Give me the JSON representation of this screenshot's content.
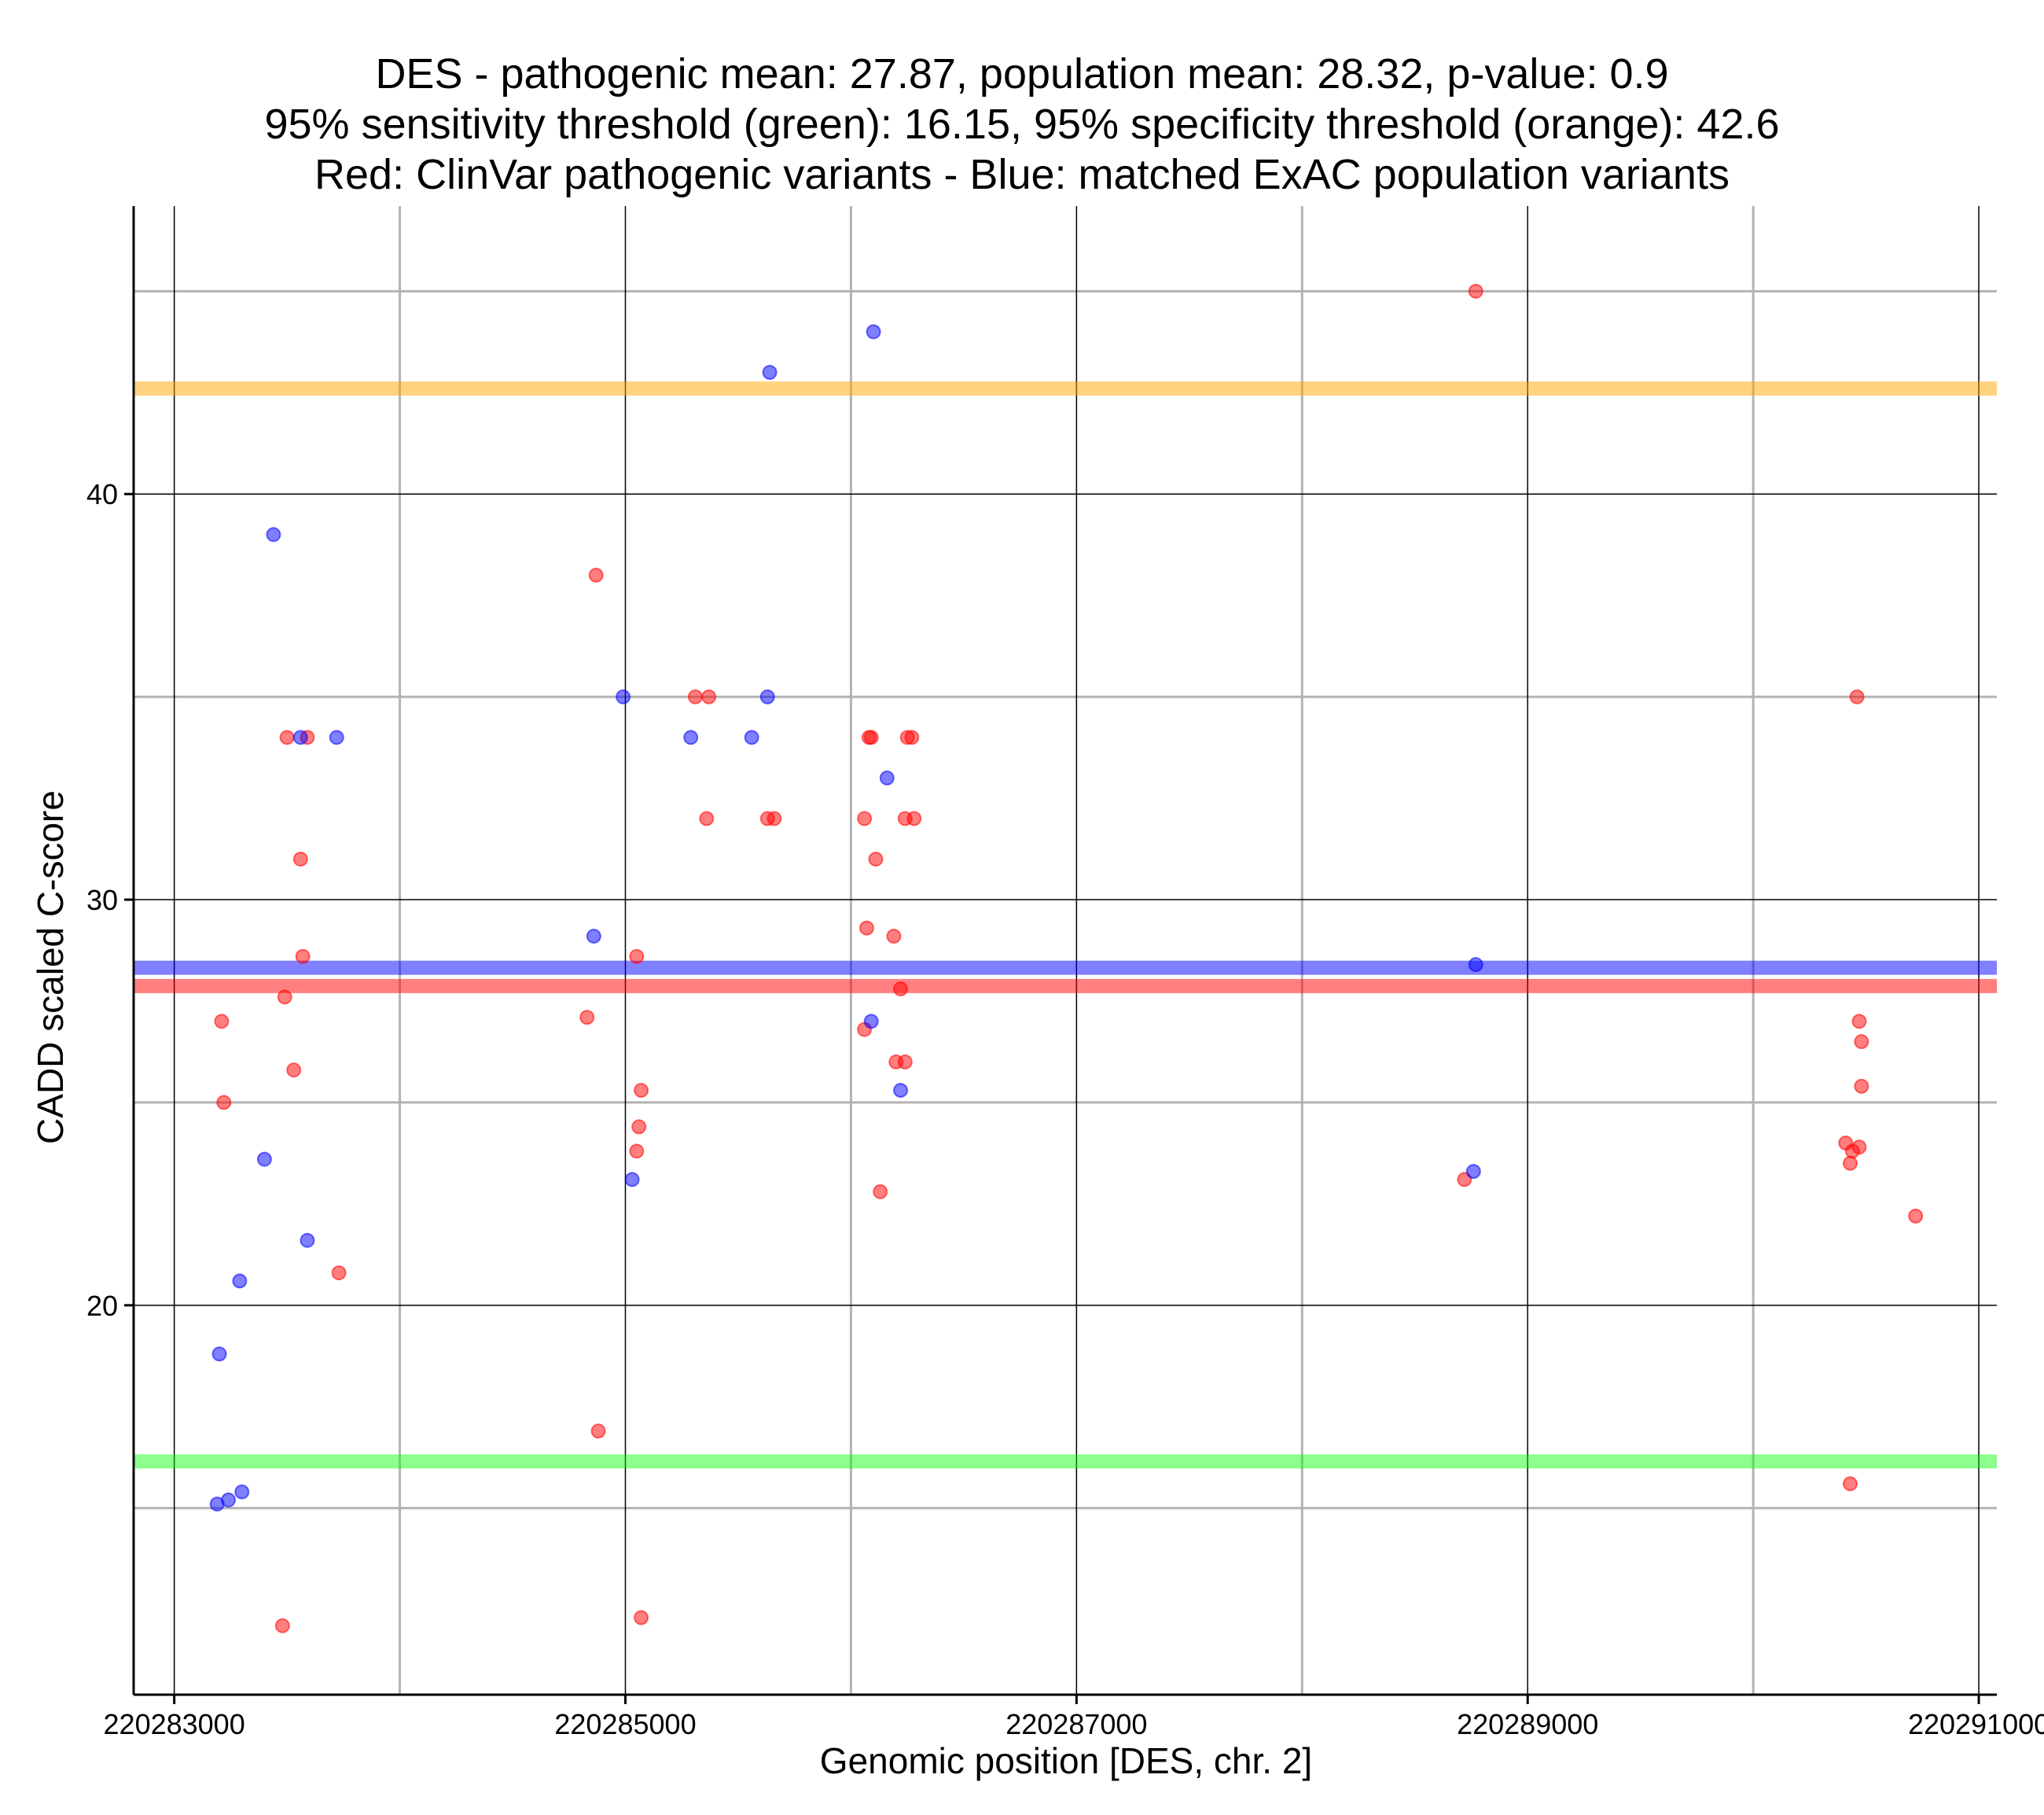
{
  "chart_data": {
    "type": "scatter",
    "title": [
      "DES - pathogenic mean: 27.87, population mean: 28.32, p-value: 0.9",
      "95% sensitivity threshold (green): 16.15, 95% specificity threshold (orange): 42.6",
      "Red: ClinVar pathogenic variants - Blue: matched ExAC population variants"
    ],
    "xlabel": "Genomic position [DES, chr. 2]",
    "ylabel": "CADD scaled C-score",
    "xlim": [
      220282820,
      220291080
    ],
    "ylim": [
      10.4,
      47.1
    ],
    "xticks": [
      220283000,
      220285000,
      220287000,
      220289000,
      220291000
    ],
    "xtick_labels": [
      "220283000",
      "220285000",
      "220287000",
      "220289000",
      "220291000"
    ],
    "yticks": [
      20,
      30,
      40
    ],
    "ytick_labels": [
      "20",
      "30",
      "40"
    ],
    "major_x_grid": [
      220283000,
      220285000,
      220287000,
      220289000,
      220291000
    ],
    "minor_x_grid": [
      220284000,
      220286000,
      220288000,
      220290000
    ],
    "major_y_grid": [
      20,
      30,
      40
    ],
    "minor_y_grid": [
      15,
      25,
      35,
      45
    ],
    "reference_lines": [
      {
        "name": "specificity-threshold",
        "value": 42.6,
        "color": "#ffa500",
        "opacity": 0.5
      },
      {
        "name": "population-mean",
        "value": 28.32,
        "color": "#0000ff",
        "opacity": 0.5
      },
      {
        "name": "pathogenic-mean",
        "value": 27.87,
        "color": "#ff0000",
        "opacity": 0.5
      },
      {
        "name": "sensitivity-threshold",
        "value": 16.15,
        "color": "#00ff00",
        "opacity": 0.45
      }
    ],
    "series": [
      {
        "name": "ClinVar pathogenic variants",
        "color": "#ff0000",
        "points": [
          {
            "x": 220283210,
            "y": 27.0
          },
          {
            "x": 220283220,
            "y": 25.0
          },
          {
            "x": 220283480,
            "y": 12.1
          },
          {
            "x": 220283490,
            "y": 27.6
          },
          {
            "x": 220283500,
            "y": 34.0
          },
          {
            "x": 220283530,
            "y": 25.8
          },
          {
            "x": 220283560,
            "y": 31.0
          },
          {
            "x": 220283570,
            "y": 28.6
          },
          {
            "x": 220283590,
            "y": 34.0
          },
          {
            "x": 220283730,
            "y": 20.8
          },
          {
            "x": 220284830,
            "y": 27.1
          },
          {
            "x": 220284870,
            "y": 38.0
          },
          {
            "x": 220284880,
            "y": 16.9
          },
          {
            "x": 220285050,
            "y": 28.6
          },
          {
            "x": 220285050,
            "y": 23.8
          },
          {
            "x": 220285060,
            "y": 24.4
          },
          {
            "x": 220285070,
            "y": 25.3
          },
          {
            "x": 220285070,
            "y": 12.3
          },
          {
            "x": 220285310,
            "y": 35.0
          },
          {
            "x": 220285360,
            "y": 32.0
          },
          {
            "x": 220285370,
            "y": 35.0
          },
          {
            "x": 220285630,
            "y": 32.0
          },
          {
            "x": 220285660,
            "y": 32.0
          },
          {
            "x": 220286060,
            "y": 26.8
          },
          {
            "x": 220286060,
            "y": 32.0
          },
          {
            "x": 220286070,
            "y": 29.3
          },
          {
            "x": 220286080,
            "y": 34.0
          },
          {
            "x": 220286090,
            "y": 34.0
          },
          {
            "x": 220286110,
            "y": 31.0
          },
          {
            "x": 220286130,
            "y": 22.8
          },
          {
            "x": 220286190,
            "y": 29.1
          },
          {
            "x": 220286200,
            "y": 26.0
          },
          {
            "x": 220286220,
            "y": 27.8
          },
          {
            "x": 220286240,
            "y": 26.0
          },
          {
            "x": 220286240,
            "y": 32.0
          },
          {
            "x": 220286250,
            "y": 34.0
          },
          {
            "x": 220286270,
            "y": 34.0
          },
          {
            "x": 220286280,
            "y": 32.0
          },
          {
            "x": 220288720,
            "y": 23.1
          },
          {
            "x": 220288770,
            "y": 45.0
          },
          {
            "x": 220290410,
            "y": 24.0
          },
          {
            "x": 220290430,
            "y": 15.6
          },
          {
            "x": 220290430,
            "y": 23.5
          },
          {
            "x": 220290440,
            "y": 23.8
          },
          {
            "x": 220290470,
            "y": 23.9
          },
          {
            "x": 220290460,
            "y": 35.0
          },
          {
            "x": 220290470,
            "y": 27.0
          },
          {
            "x": 220290480,
            "y": 26.5
          },
          {
            "x": 220290480,
            "y": 25.4
          },
          {
            "x": 220290720,
            "y": 22.2
          }
        ]
      },
      {
        "name": "matched ExAC population variants",
        "color": "#0000ff",
        "points": [
          {
            "x": 220283190,
            "y": 15.1
          },
          {
            "x": 220283200,
            "y": 18.8
          },
          {
            "x": 220283240,
            "y": 15.2
          },
          {
            "x": 220283290,
            "y": 20.6
          },
          {
            "x": 220283300,
            "y": 15.4
          },
          {
            "x": 220283400,
            "y": 23.6
          },
          {
            "x": 220283440,
            "y": 39.0
          },
          {
            "x": 220283560,
            "y": 34.0
          },
          {
            "x": 220283590,
            "y": 21.6
          },
          {
            "x": 220283720,
            "y": 34.0
          },
          {
            "x": 220284860,
            "y": 29.1
          },
          {
            "x": 220284990,
            "y": 35.0
          },
          {
            "x": 220285030,
            "y": 23.1
          },
          {
            "x": 220285290,
            "y": 34.0
          },
          {
            "x": 220285560,
            "y": 34.0
          },
          {
            "x": 220285630,
            "y": 35.0
          },
          {
            "x": 220285640,
            "y": 43.0
          },
          {
            "x": 220286090,
            "y": 27.0
          },
          {
            "x": 220286100,
            "y": 44.0
          },
          {
            "x": 220286160,
            "y": 33.0
          },
          {
            "x": 220286220,
            "y": 25.3
          },
          {
            "x": 220288760,
            "y": 23.3
          },
          {
            "x": 220288770,
            "y": 28.4
          }
        ]
      }
    ]
  }
}
